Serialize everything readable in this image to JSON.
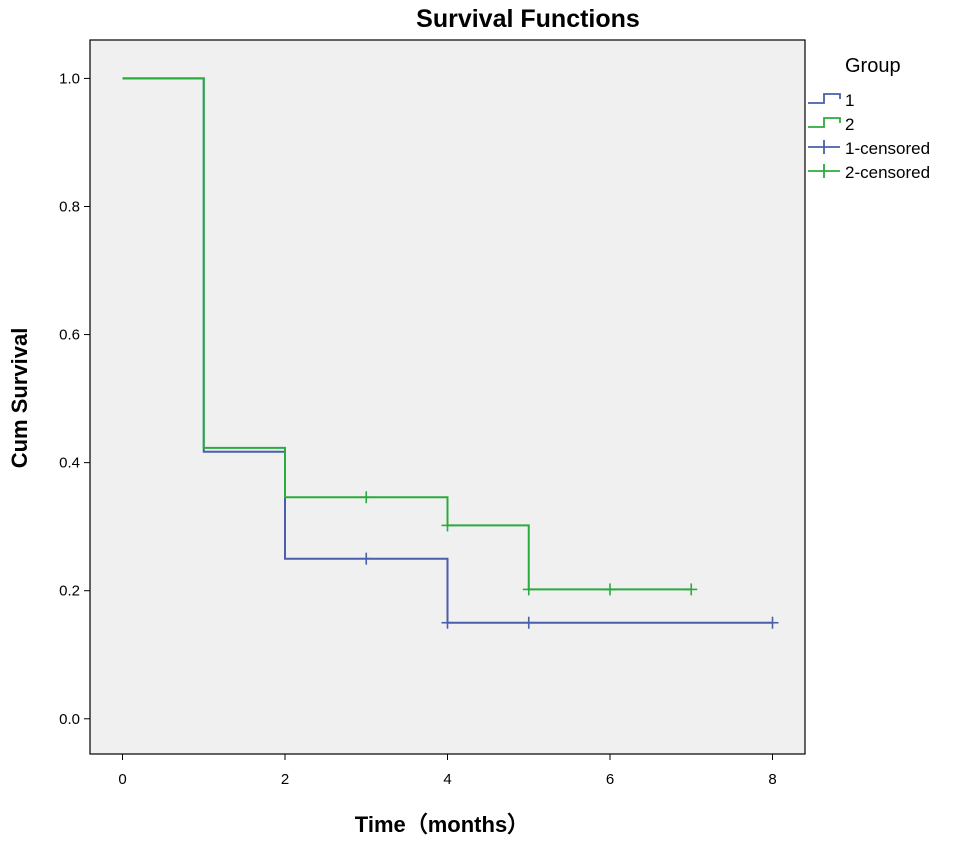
{
  "chart_data": {
    "type": "line",
    "subtype": "kaplan-meier step",
    "title": "Survival Functions",
    "xlabel": "Time（months）",
    "ylabel": "Cum Survival",
    "xlim": [
      -0.4,
      8.4
    ],
    "ylim": [
      -0.055,
      1.06
    ],
    "xticks": [
      0,
      2,
      4,
      6,
      8
    ],
    "yticks": [
      0.0,
      0.2,
      0.4,
      0.6,
      0.8,
      1.0
    ],
    "ytick_labels": [
      "0.0",
      "0.2",
      "0.4",
      "0.6",
      "0.8",
      "1.0"
    ],
    "grid": false,
    "background": "#f0f0f0",
    "legend": {
      "title": "Group",
      "position": "right",
      "entries": [
        "1",
        "2",
        "1-censored",
        "2-censored"
      ]
    },
    "series": [
      {
        "name": "1",
        "color": "#4a5eac",
        "steps": [
          [
            0,
            1.0
          ],
          [
            1,
            0.417
          ],
          [
            2,
            0.25
          ],
          [
            4,
            0.15
          ],
          [
            8,
            0.15
          ]
        ],
        "censored": [
          [
            3,
            0.25
          ],
          [
            4,
            0.15
          ],
          [
            5,
            0.15
          ],
          [
            8,
            0.15
          ]
        ]
      },
      {
        "name": "2",
        "color": "#2bab3e",
        "steps": [
          [
            0,
            1.0
          ],
          [
            1,
            0.423
          ],
          [
            2,
            0.346
          ],
          [
            4,
            0.302
          ],
          [
            5,
            0.202
          ],
          [
            7,
            0.202
          ]
        ],
        "censored": [
          [
            3,
            0.346
          ],
          [
            4,
            0.302
          ],
          [
            5,
            0.202
          ],
          [
            6,
            0.202
          ],
          [
            7,
            0.202
          ]
        ]
      }
    ]
  }
}
